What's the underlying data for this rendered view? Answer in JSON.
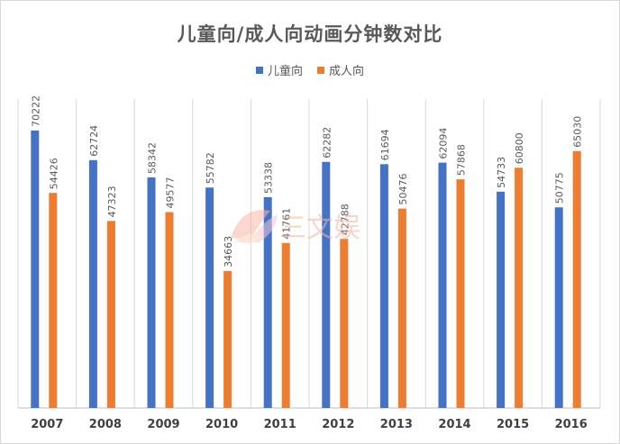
{
  "chart_data": {
    "type": "bar",
    "title": "儿童向/成人向动画分钟数对比",
    "categories": [
      "2007",
      "2008",
      "2009",
      "2010",
      "2011",
      "2012",
      "2013",
      "2014",
      "2015",
      "2016"
    ],
    "series": [
      {
        "name": "儿童向",
        "color": "#4472c4",
        "values": [
          70222,
          62724,
          58342,
          55782,
          53338,
          62282,
          61694,
          62094,
          54733,
          50775
        ]
      },
      {
        "name": "成人向",
        "color": "#ed7d31",
        "values": [
          54426,
          47323,
          49577,
          34663,
          41761,
          42788,
          50476,
          57868,
          60800,
          65030
        ]
      }
    ],
    "ylim": [
      0,
      80000
    ],
    "grid": "vertical-separators",
    "legend": "top-center",
    "xlabel": "",
    "ylabel": ""
  },
  "watermark": {
    "text": "三文娱"
  }
}
